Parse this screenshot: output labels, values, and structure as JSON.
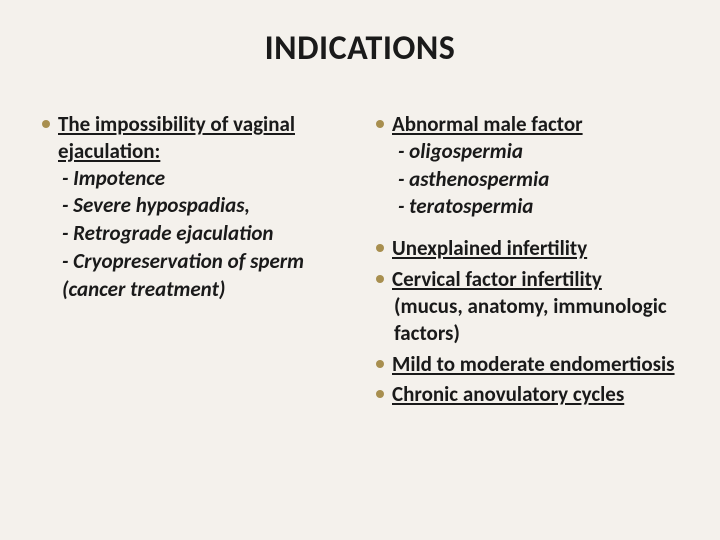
{
  "title": "INDICATIONS",
  "colors": {
    "background": "#f4f1ec",
    "bullet": "#a88f4f",
    "text": "#1a1a1a"
  },
  "typography": {
    "title_fontsize": 34,
    "body_fontsize": 21,
    "body_weight": "bold"
  },
  "left": {
    "group1": {
      "lead": "The impossibility of vaginal ejaculation:",
      "sub1": "- Impotence",
      "sub2": "- Severe hypospadias,",
      "sub3": "- Retrograde ejaculation",
      "sub4": "- Cryopreservation of sperm (cancer treatment)"
    }
  },
  "right": {
    "group1": {
      "lead": "Abnormal male factor",
      "sub1": "- oligospermia",
      "sub2": "- asthenospermia",
      "sub3": "- teratospermia"
    },
    "group2": {
      "lead": "Unexplained infertility"
    },
    "group3": {
      "lead": "Cervical factor infertility",
      "sub1": "(mucus, anatomy, immunologic factors)"
    },
    "group4": {
      "lead": "Mild to moderate endomertiosis"
    },
    "group5": {
      "lead": "Chronic anovulatory cycles"
    }
  }
}
